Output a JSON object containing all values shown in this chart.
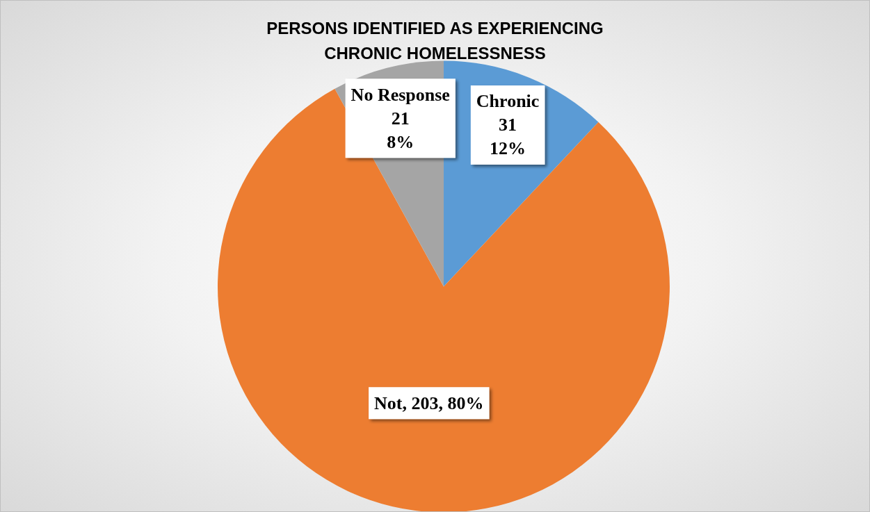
{
  "chart_data": {
    "type": "pie",
    "title": "PERSONS IDENTIFIED AS EXPERIENCING\nCHRONIC HOMELESSNESS",
    "categories": [
      "Chronic",
      "Not",
      "No Response"
    ],
    "values": [
      12,
      80,
      8
    ],
    "colors": [
      "#5b9bd5",
      "#ed7d31",
      "#a5a5a5"
    ],
    "value_labels": [
      "31\n12%",
      "203, 80%",
      "21\n8%"
    ],
    "legend": false
  }
}
